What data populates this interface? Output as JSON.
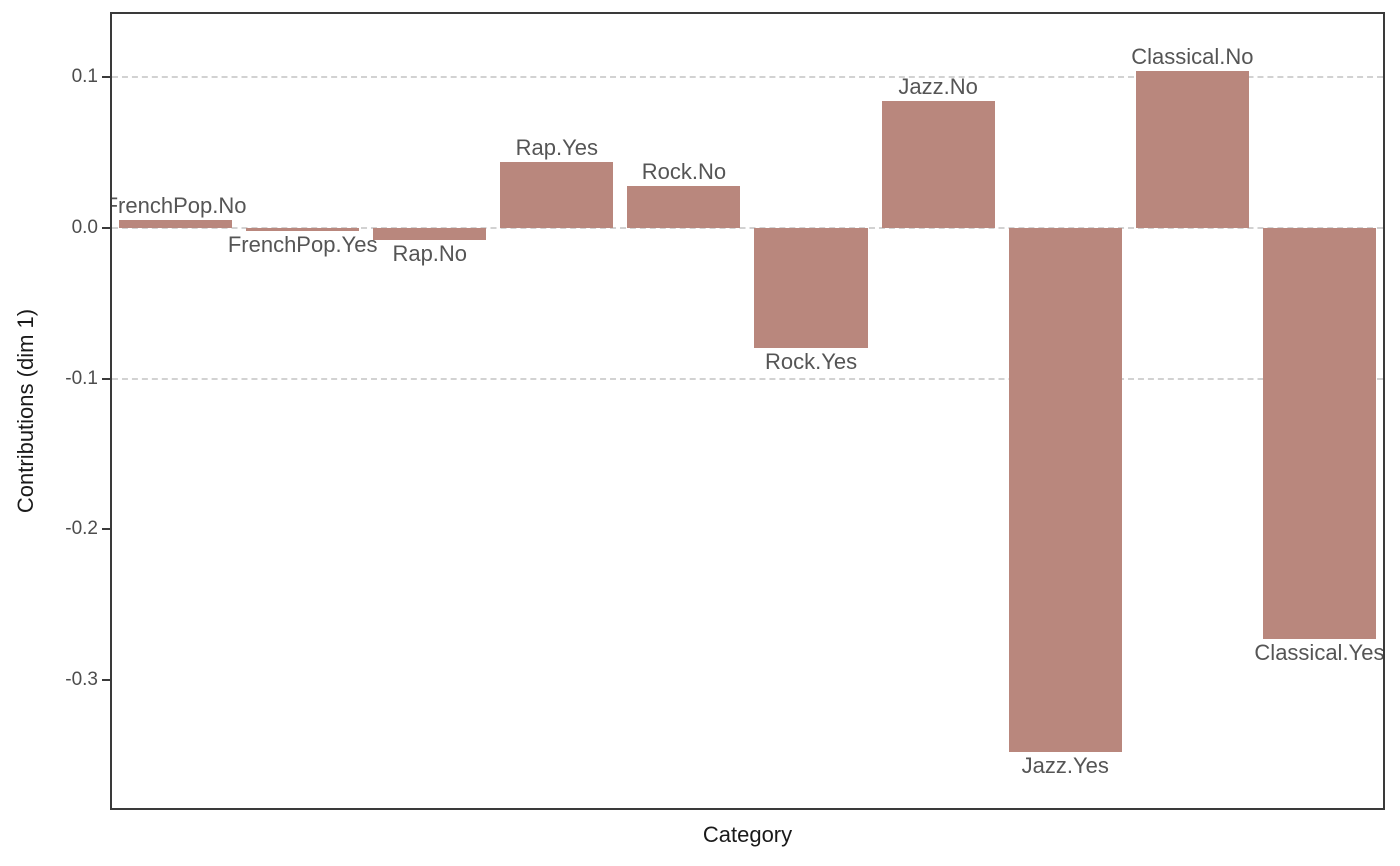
{
  "figure": {
    "background": "#ffffff",
    "panel_border_color": "#3a3a3a",
    "grid_color": "#d2d2d2",
    "tick_label_color": "#4d4d4d",
    "axis_title_color": "#1a1a1a"
  },
  "chart_data": {
    "type": "bar",
    "title": "",
    "xlabel": "Category",
    "ylabel": "Contributions (dim 1)",
    "categories": [
      "FrenchPop.No",
      "FrenchPop.Yes",
      "Rap.No",
      "Rap.Yes",
      "Rock.No",
      "Rock.Yes",
      "Jazz.No",
      "Jazz.Yes",
      "Classical.No",
      "Classical.Yes"
    ],
    "values": [
      0.005,
      -0.002,
      -0.008,
      0.044,
      0.028,
      -0.08,
      0.084,
      -0.348,
      0.104,
      -0.273
    ],
    "bar_color": "#b9877d",
    "bar_label_color": "#555555",
    "ylim": [
      -0.385,
      0.142
    ],
    "yticks": [
      0.1,
      0,
      -0.1,
      -0.2,
      -0.3
    ],
    "ytick_labels": [
      "0.1",
      "0.0",
      "-0.1",
      "-0.2",
      "-0.3"
    ],
    "gridline_values": [
      0.1,
      0,
      -0.1
    ],
    "grid_style": "dashed",
    "legend": "none",
    "bar_width_fraction": 0.89,
    "bar_label_position": "outside-end"
  }
}
